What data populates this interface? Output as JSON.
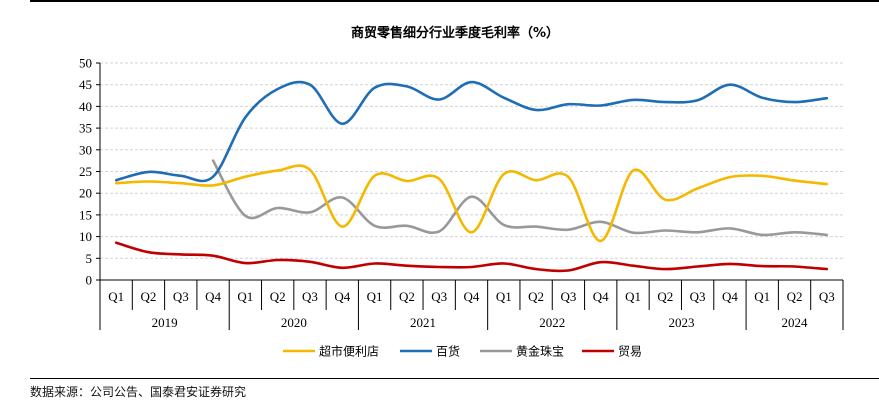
{
  "source_note": "数据来源：公司公告、国泰君安证券研究",
  "chart_data": {
    "type": "line",
    "title": "商贸零售细分行业季度毛利率（%）",
    "xlabel": "",
    "ylabel": "",
    "ylim": [
      0,
      50
    ],
    "yticks": [
      0,
      5,
      10,
      15,
      20,
      25,
      30,
      35,
      40,
      45,
      50
    ],
    "grid": true,
    "legend_position": "bottom",
    "categories": [
      "Q1",
      "Q2",
      "Q3",
      "Q4",
      "Q1",
      "Q2",
      "Q3",
      "Q4",
      "Q1",
      "Q2",
      "Q3",
      "Q4",
      "Q1",
      "Q2",
      "Q3",
      "Q4",
      "Q1",
      "Q2",
      "Q3",
      "Q4",
      "Q1",
      "Q2",
      "Q3"
    ],
    "years": [
      {
        "label": "2019",
        "count": 4
      },
      {
        "label": "2020",
        "count": 4
      },
      {
        "label": "2021",
        "count": 4
      },
      {
        "label": "2022",
        "count": 4
      },
      {
        "label": "2023",
        "count": 4
      },
      {
        "label": "2024",
        "count": 3
      }
    ],
    "series": [
      {
        "name": "超市便利店",
        "color": "#F5B800",
        "values": [
          22.3,
          22.7,
          22.3,
          21.8,
          23.8,
          25.2,
          25.4,
          12.3,
          24.0,
          22.8,
          23.3,
          11.0,
          24.4,
          23.0,
          23.7,
          9.0,
          25.2,
          18.5,
          21.1,
          23.7,
          24.0,
          22.9,
          22.1
        ]
      },
      {
        "name": "百货",
        "color": "#1F6DB5",
        "values": [
          23.0,
          24.9,
          24.0,
          23.8,
          37.5,
          44.0,
          45.0,
          36.0,
          44.3,
          44.6,
          41.6,
          45.6,
          42.0,
          39.2,
          40.5,
          40.2,
          41.5,
          41.0,
          41.4,
          45.0,
          42.0,
          41.0,
          41.9
        ]
      },
      {
        "name": "黄金珠宝",
        "color": "#999999",
        "start_index": 3,
        "values": [
          null,
          null,
          null,
          27.5,
          14.8,
          16.6,
          15.6,
          19.0,
          12.5,
          12.5,
          11.2,
          19.2,
          12.7,
          12.3,
          11.6,
          13.4,
          10.9,
          11.4,
          11.0,
          11.9,
          10.4,
          11.0,
          10.4
        ]
      },
      {
        "name": "贸易",
        "color": "#C00000",
        "values": [
          8.6,
          6.4,
          5.9,
          5.6,
          3.9,
          4.6,
          4.2,
          2.8,
          3.8,
          3.3,
          3.0,
          3.0,
          3.8,
          2.5,
          2.2,
          4.1,
          3.3,
          2.5,
          3.1,
          3.7,
          3.2,
          3.1,
          2.5
        ]
      }
    ]
  }
}
